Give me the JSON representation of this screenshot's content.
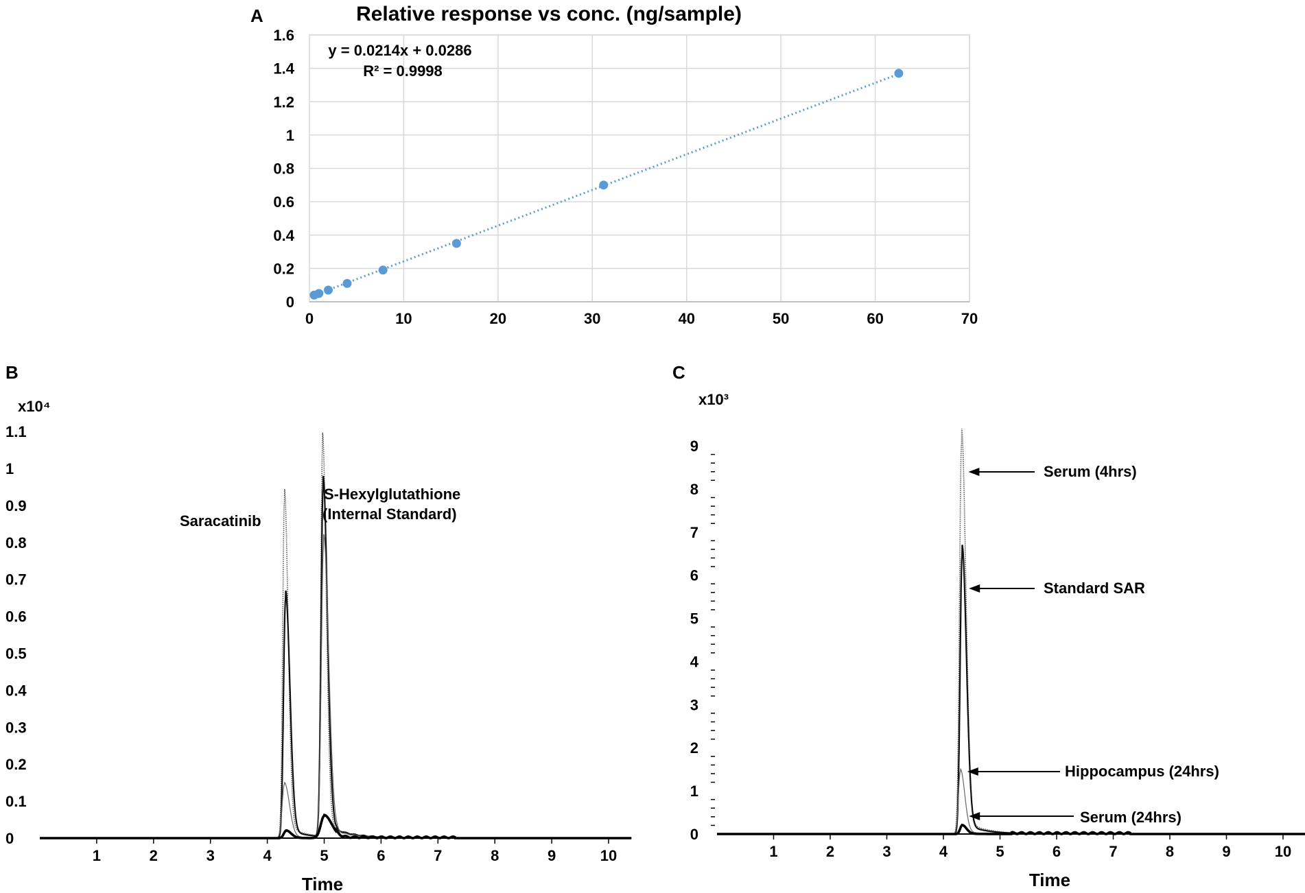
{
  "chart_data": [
    {
      "panel": "A",
      "type": "scatter",
      "title": "Relative response vs conc. (ng/sample)",
      "equation": "y = 0.0214x + 0.0286",
      "r_squared": "R² = 0.9998",
      "xlim": [
        0,
        70
      ],
      "ylim": [
        0,
        1.6
      ],
      "xticks": [
        "0",
        "10",
        "20",
        "30",
        "40",
        "50",
        "60",
        "70"
      ],
      "yticks": [
        "0",
        "0.2",
        "0.4",
        "0.6",
        "0.8",
        "1",
        "1.2",
        "1.4",
        "1.6"
      ],
      "grid": true,
      "trendline": {
        "slope": 0.0214,
        "intercept": 0.0286,
        "style": "dotted"
      },
      "x": [
        0.5,
        1,
        2,
        4,
        7.8,
        15.6,
        31.2,
        62.5
      ],
      "y": [
        0.04,
        0.05,
        0.07,
        0.11,
        0.19,
        0.35,
        0.7,
        1.37
      ],
      "marker_color": "#5b9bd5"
    },
    {
      "panel": "B",
      "type": "line",
      "exponent_label": "x10⁴",
      "xlabel": "Time",
      "xlim": [
        0,
        10.4
      ],
      "ylim": [
        0,
        1.15
      ],
      "xticks": [
        "1",
        "2",
        "3",
        "4",
        "5",
        "6",
        "7",
        "8",
        "9",
        "10"
      ],
      "yticks": [
        "0",
        "0.1",
        "0.2",
        "0.3",
        "0.4",
        "0.5",
        "0.6",
        "0.7",
        "0.8",
        "0.9",
        "1",
        "1.1"
      ],
      "annotations": [
        "Saracatinib",
        "S-Hexylglutathione",
        "(Internal Standard)"
      ],
      "series": [
        {
          "peaks": [
            {
              "t": 4.3,
              "h": 0.91,
              "w": 0.03
            },
            {
              "t": 4.97,
              "h": 1.05,
              "w": 0.03
            }
          ],
          "style": "dotted"
        },
        {
          "peaks": [
            {
              "t": 4.32,
              "h": 0.645,
              "w": 0.035
            },
            {
              "t": 4.98,
              "h": 0.94,
              "w": 0.035
            }
          ],
          "style": "solid"
        },
        {
          "peaks": [
            {
              "t": 4.3,
              "h": 0.145,
              "w": 0.04
            },
            {
              "t": 4.99,
              "h": 0.79,
              "w": 0.04
            }
          ],
          "style": "thin"
        },
        {
          "peaks": [
            {
              "t": 4.33,
              "h": 0.02,
              "w": 0.04
            },
            {
              "t": 5.0,
              "h": 0.06,
              "w": 0.06
            }
          ],
          "style": "bold"
        }
      ]
    },
    {
      "panel": "C",
      "type": "line",
      "exponent_label": "x10³",
      "xlabel": "Time",
      "xlim": [
        0,
        10.4
      ],
      "ylim": [
        0,
        9.5
      ],
      "xticks": [
        "1",
        "2",
        "3",
        "4",
        "5",
        "6",
        "7",
        "8",
        "9",
        "10"
      ],
      "yticks": [
        "0",
        "1",
        "2",
        "3",
        "4",
        "5",
        "6",
        "7",
        "8",
        "9"
      ],
      "series": [
        {
          "name": "Serum (4hrs)",
          "peak_time": 4.32,
          "peak": 9.05,
          "style": "dotted"
        },
        {
          "name": "Standard SAR",
          "peak_time": 4.33,
          "peak": 6.45,
          "style": "solid"
        },
        {
          "name": "Hippocampus (24hrs)",
          "peak_time": 4.3,
          "peak": 1.45,
          "style": "thin"
        },
        {
          "name": "Serum (24hrs)",
          "peak_time": 4.33,
          "peak": 0.2,
          "style": "bold"
        }
      ]
    }
  ]
}
